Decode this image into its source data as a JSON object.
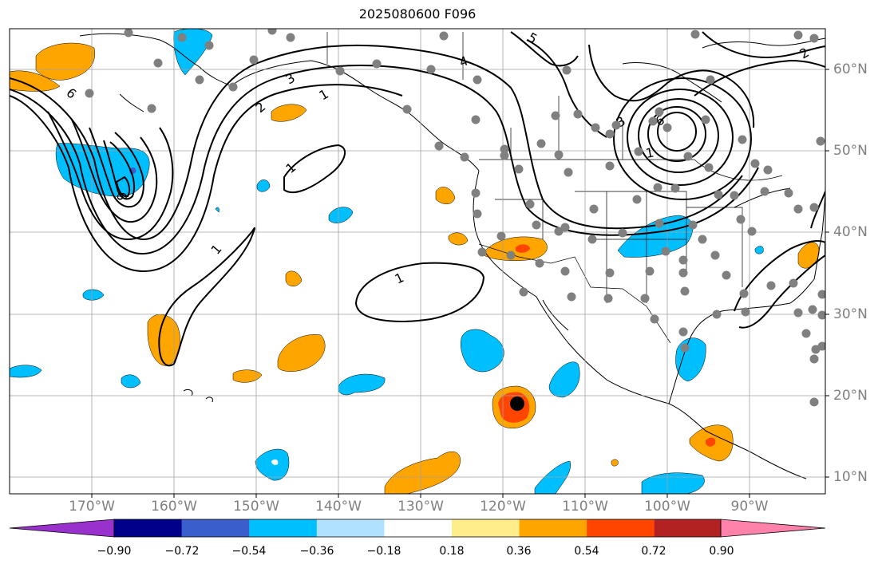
{
  "title": "2025080600 F096",
  "lon_ticks": [
    "170°W",
    "160°W",
    "150°W",
    "140°W",
    "130°W",
    "120°W",
    "110°W",
    "100°W",
    "90°W"
  ],
  "lat_ticks": [
    "60°N",
    "50°N",
    "40°N",
    "30°N",
    "20°N",
    "10°N"
  ],
  "colorbar": {
    "ticks": [
      "−0.90",
      "−0.72",
      "−0.54",
      "−0.36",
      "−0.18",
      "0.18",
      "0.36",
      "0.54",
      "0.72",
      "0.90"
    ],
    "colors": [
      "#9932CC",
      "#00008B",
      "#3A5FCD",
      "#00BFFF",
      "#B0E2FF",
      "#FFFFFF",
      "#FFEC8B",
      "#FFA500",
      "#FF4500",
      "#B22222",
      "#FF82AB"
    ]
  },
  "contour_labels": [
    "1",
    "1",
    "1",
    "1",
    "1",
    "2",
    "3",
    "3",
    "4",
    "5",
    "6",
    "6",
    "6",
    "2"
  ],
  "marker_color": "#808080",
  "grid": true
}
